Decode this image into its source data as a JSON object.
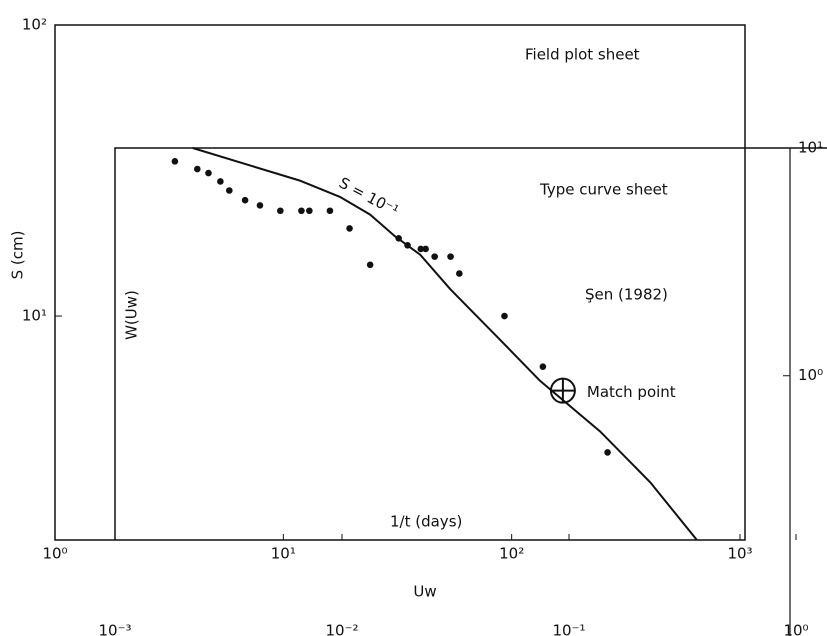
{
  "chart_data": [
    {
      "type": "scatter",
      "title": "Field plot sheet",
      "x_label": "1/t (days)",
      "y_label": "S (cm)",
      "log_x": true,
      "log_y": true,
      "color": "#111111",
      "xlim": [
        1,
        1000
      ],
      "ylim": [
        1.7,
        100
      ],
      "xticks": [
        {
          "value": 1,
          "label": "10⁰"
        },
        {
          "value": 10,
          "label": "10¹"
        },
        {
          "value": 100,
          "label": "10²"
        },
        {
          "value": 1000,
          "label": "10³"
        }
      ],
      "yticks": [
        {
          "value": 10,
          "label": "10¹"
        },
        {
          "value": 100,
          "label": "10²"
        }
      ],
      "x": [
        3.35,
        4.2,
        4.7,
        5.3,
        5.8,
        6.8,
        7.9,
        9.7,
        12,
        13,
        16,
        19.5,
        24,
        32,
        35,
        40,
        42,
        46,
        54,
        59,
        93,
        137,
        263
      ],
      "values": [
        34,
        32,
        31,
        29,
        27,
        25,
        24,
        23,
        23,
        23,
        23,
        20,
        15,
        18.5,
        17.5,
        17,
        17,
        16,
        16,
        14,
        10,
        6.7,
        3.4
      ]
    },
    {
      "type": "line",
      "title": "Type curve sheet",
      "annotation": "Şen (1982)",
      "x_label": "Uw",
      "y_label": "W(Uw)",
      "log_x": true,
      "log_y": true,
      "xlim": [
        0.001,
        1
      ],
      "ylim": [
        0.19,
        10
      ],
      "xticks": [
        {
          "value": 0.001,
          "label": "10⁻³"
        },
        {
          "value": 0.01,
          "label": "10⁻²"
        },
        {
          "value": 0.1,
          "label": "10⁻¹"
        },
        {
          "value": 1,
          "label": "10⁰"
        }
      ],
      "yticks": [
        {
          "value": 1,
          "label": "10⁰"
        },
        {
          "value": 10,
          "label": "10¹"
        }
      ],
      "x": [
        0.0022,
        0.0039,
        0.0065,
        0.0098,
        0.0133,
        0.0171,
        0.0221,
        0.03,
        0.05,
        0.0745,
        0.137,
        0.228,
        0.366
      ],
      "series": [
        {
          "name": "S = 10⁻¹",
          "color": "#111111",
          "values": [
            10,
            8.4,
            7.2,
            6.1,
            5.1,
            4.1,
            3.4,
            2.4,
            1.43,
            0.95,
            0.57,
            0.34,
            0.19
          ]
        }
      ],
      "match_point": {
        "label": "Match point",
        "x": 0.094,
        "y": 0.86
      }
    }
  ]
}
